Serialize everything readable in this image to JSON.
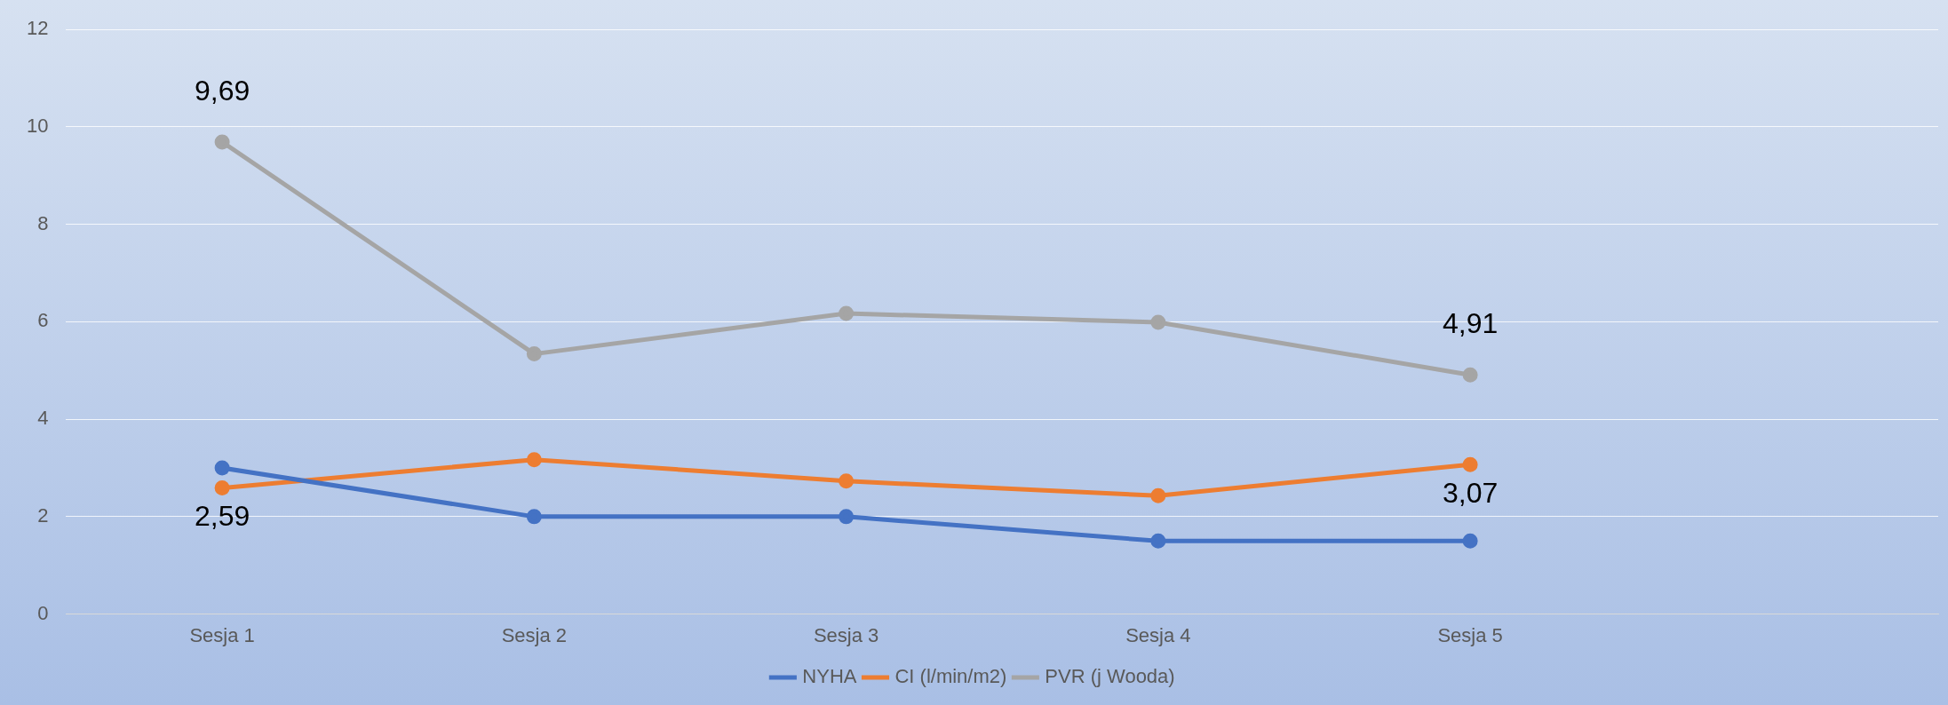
{
  "chart_data": {
    "type": "line",
    "categories": [
      "Sesja 1",
      "Sesja 2",
      "Sesja 3",
      "Sesja 4",
      "Sesja 5",
      null
    ],
    "series": [
      {
        "name": "NYHA",
        "color": "#4472c4",
        "values": [
          3,
          2,
          2,
          1.5,
          1.5,
          null
        ]
      },
      {
        "name": "CI (l/min/m2)",
        "color": "#ed7d31",
        "values": [
          2.59,
          3.17,
          2.73,
          2.43,
          3.07,
          null
        ],
        "value_labels": [
          "2,59",
          null,
          null,
          null,
          "3,07",
          null
        ]
      },
      {
        "name": "PVR (j Wooda)",
        "color": "#a5a5a5",
        "values": [
          9.69,
          5.34,
          6.17,
          5.99,
          4.91,
          null
        ],
        "value_labels": [
          "9,69",
          null,
          null,
          null,
          "4,91",
          null
        ]
      }
    ],
    "ylim": [
      0,
      12
    ],
    "yticks": [
      0,
      2,
      4,
      6,
      8,
      10,
      12
    ],
    "grid": "y",
    "legend": "bottom",
    "marker": "circle",
    "line_style": "solid"
  }
}
